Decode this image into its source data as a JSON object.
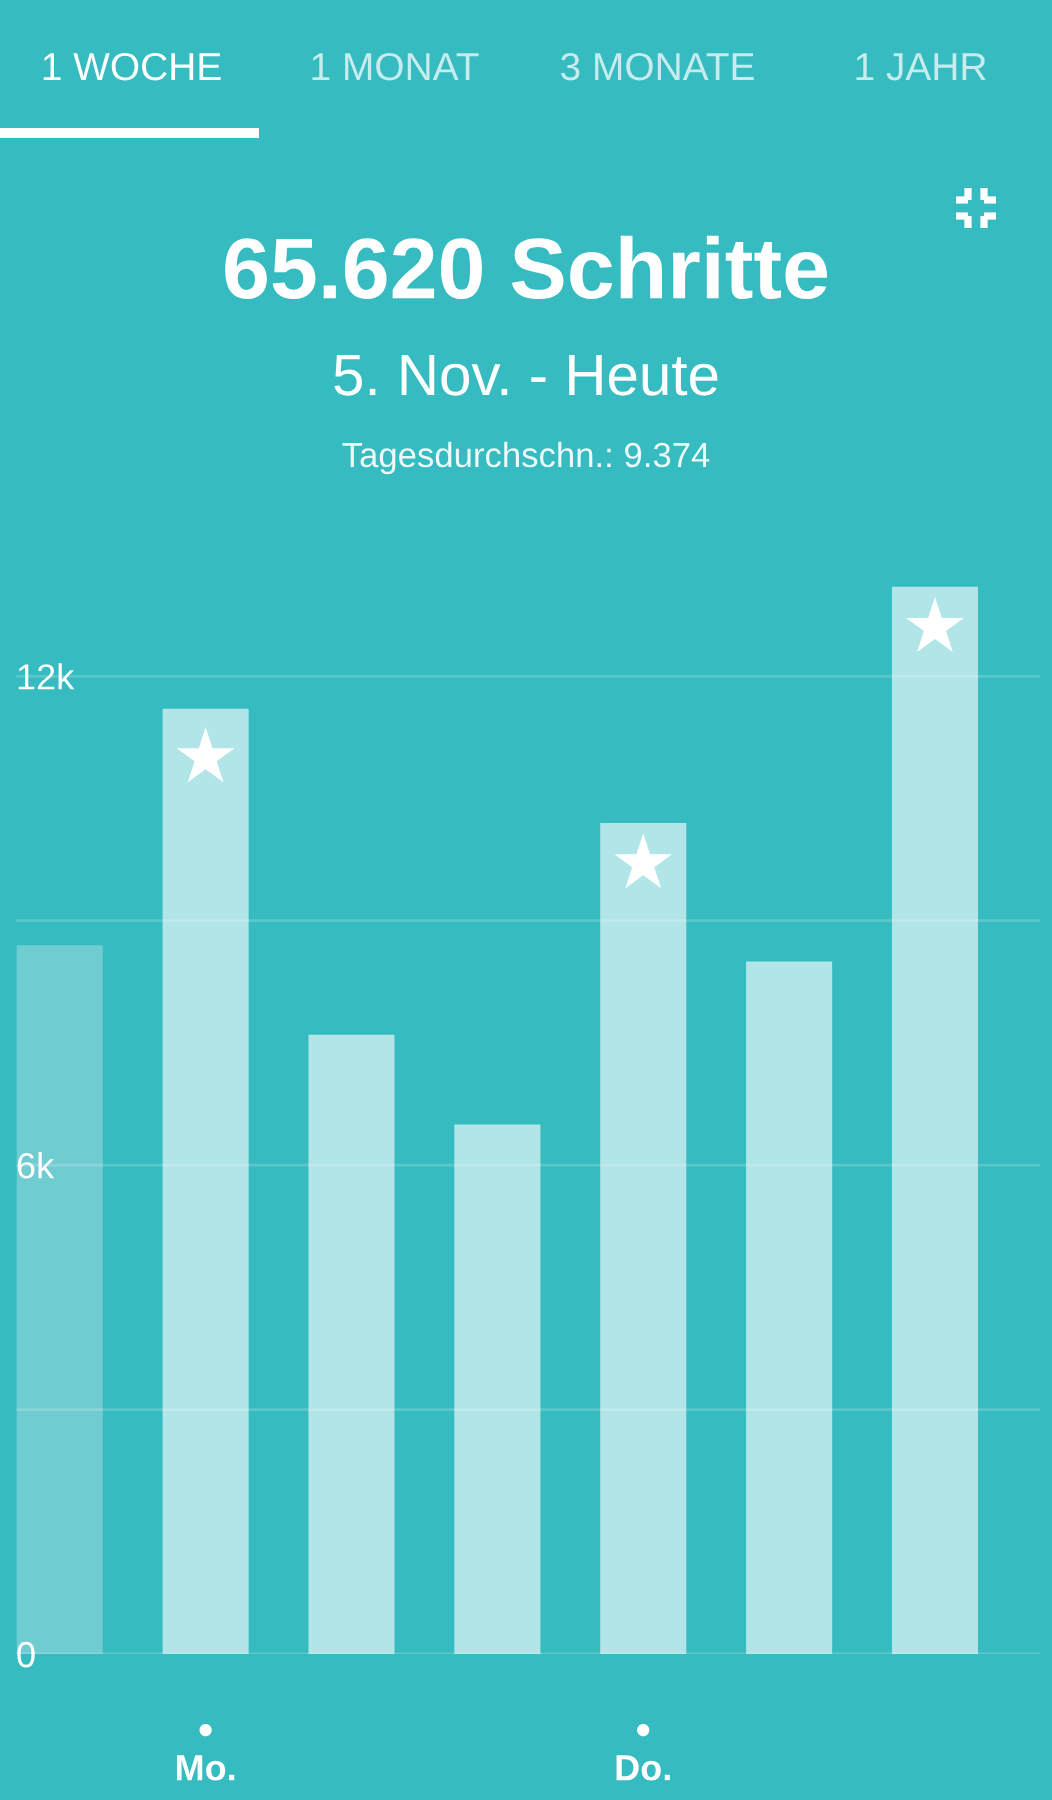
{
  "chart_data": {
    "type": "bar",
    "title": "65.620 Schritte",
    "subtitle": "5. Nov. - Heute",
    "annotations": [
      "1 WOCHE",
      "1 MONAT",
      "3 MONATE",
      "1 JAHR",
      "Tagesdurchschn.: 9.374"
    ],
    "categories": [
      null,
      "Mo.",
      null,
      null,
      "Do.",
      null,
      null
    ],
    "series": [
      {
        "values": [
          8700,
          11600,
          7600,
          6500,
          10200,
          8500,
          13100
        ],
        "colors": [
          "#6fcdd2",
          "#b1e5e7",
          "#b1e5e7",
          "#b1e5e7",
          "#b1e5e7",
          "#b1e5e7",
          "#b1e5e7"
        ]
      },
      {
        "type": "scatter",
        "color": "#ffffff",
        "values": [
          null,
          11000,
          null,
          null,
          9700,
          null,
          12600
        ]
      }
    ],
    "marker": "star",
    "ylim": [
      0,
      20300
    ],
    "yticks": [
      0,
      {
        "value": 3000,
        "label": null
      },
      {
        "value": 6000,
        "label": "6k"
      },
      {
        "value": 9000,
        "label": null
      },
      {
        "value": 12000,
        "label": "12k"
      }
    ],
    "grid": "y"
  }
}
